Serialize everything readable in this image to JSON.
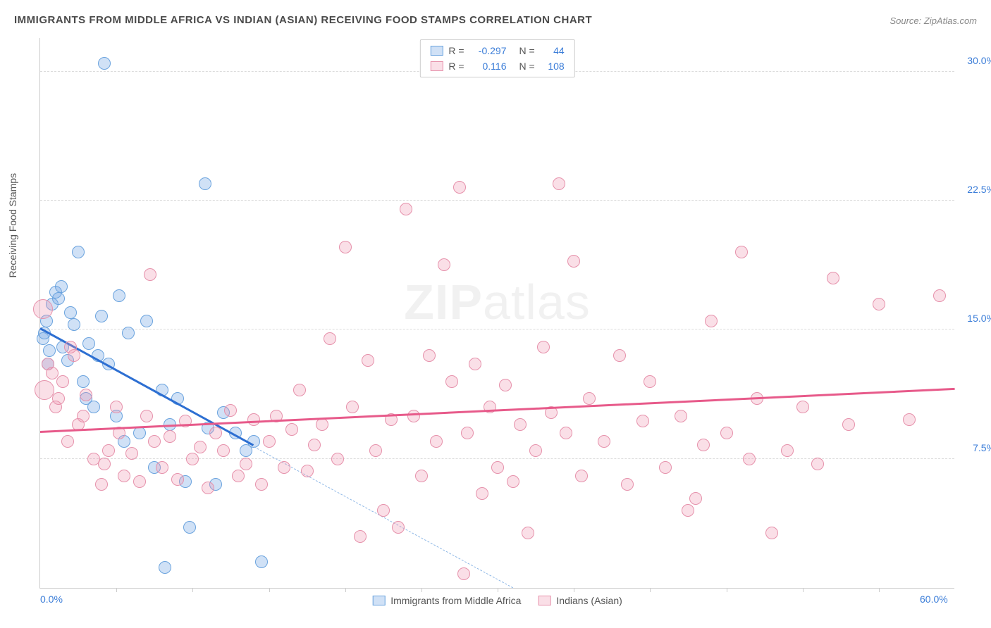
{
  "title": "IMMIGRANTS FROM MIDDLE AFRICA VS INDIAN (ASIAN) RECEIVING FOOD STAMPS CORRELATION CHART",
  "source": "Source: ZipAtlas.com",
  "ylabel": "Receiving Food Stamps",
  "watermark_bold": "ZIP",
  "watermark_rest": "atlas",
  "chart": {
    "type": "scatter",
    "xlim": [
      0,
      60
    ],
    "ylim": [
      0,
      32
    ],
    "xticks_minor": [
      5,
      10,
      15,
      20,
      25,
      30,
      35,
      40,
      45,
      50,
      55
    ],
    "xtick_labels": [
      {
        "x": 0,
        "label": "0.0%"
      },
      {
        "x": 60,
        "label": "60.0%"
      }
    ],
    "yticks": [
      {
        "y": 7.5,
        "label": "7.5%"
      },
      {
        "y": 15.0,
        "label": "15.0%"
      },
      {
        "y": 22.5,
        "label": "22.5%"
      },
      {
        "y": 30.0,
        "label": "30.0%"
      }
    ],
    "background_color": "#ffffff",
    "grid_color": "#dcdcdc",
    "series": [
      {
        "key": "middle_africa",
        "label": "Immigrants from Middle Africa",
        "fill": "rgba(120,170,230,0.35)",
        "stroke": "#6aa3de",
        "marker_radius": 9,
        "R": "-0.297",
        "N": "44",
        "trend": {
          "x1": 0,
          "y1": 15.0,
          "x2": 14,
          "y2": 8.2,
          "color": "#2d6fd2",
          "width": 3,
          "dash": false
        },
        "extrap": {
          "x1": 14,
          "y1": 8.2,
          "x2": 31,
          "y2": 0.0,
          "color": "#8fb8e6",
          "width": 1,
          "dash": true
        },
        "points": [
          {
            "x": 0.2,
            "y": 14.5
          },
          {
            "x": 0.3,
            "y": 14.8
          },
          {
            "x": 0.4,
            "y": 15.5
          },
          {
            "x": 0.5,
            "y": 13.0
          },
          {
            "x": 0.6,
            "y": 13.8
          },
          {
            "x": 0.8,
            "y": 16.5
          },
          {
            "x": 1.0,
            "y": 17.2
          },
          {
            "x": 1.2,
            "y": 16.8
          },
          {
            "x": 1.4,
            "y": 17.5
          },
          {
            "x": 1.5,
            "y": 14.0
          },
          {
            "x": 1.8,
            "y": 13.2
          },
          {
            "x": 2.0,
            "y": 16.0
          },
          {
            "x": 2.2,
            "y": 15.3
          },
          {
            "x": 2.5,
            "y": 19.5
          },
          {
            "x": 2.8,
            "y": 12.0
          },
          {
            "x": 3.0,
            "y": 11.0
          },
          {
            "x": 3.2,
            "y": 14.2
          },
          {
            "x": 3.5,
            "y": 10.5
          },
          {
            "x": 3.8,
            "y": 13.5
          },
          {
            "x": 4.0,
            "y": 15.8
          },
          {
            "x": 4.2,
            "y": 30.5
          },
          {
            "x": 4.5,
            "y": 13.0
          },
          {
            "x": 5.0,
            "y": 10.0
          },
          {
            "x": 5.2,
            "y": 17.0
          },
          {
            "x": 5.5,
            "y": 8.5
          },
          {
            "x": 5.8,
            "y": 14.8
          },
          {
            "x": 6.5,
            "y": 9.0
          },
          {
            "x": 7.0,
            "y": 15.5
          },
          {
            "x": 7.5,
            "y": 7.0
          },
          {
            "x": 8.0,
            "y": 11.5
          },
          {
            "x": 8.2,
            "y": 1.2
          },
          {
            "x": 8.5,
            "y": 9.5
          },
          {
            "x": 9.0,
            "y": 11.0
          },
          {
            "x": 9.5,
            "y": 6.2
          },
          {
            "x": 9.8,
            "y": 3.5
          },
          {
            "x": 10.8,
            "y": 23.5
          },
          {
            "x": 11.0,
            "y": 9.3
          },
          {
            "x": 11.5,
            "y": 6.0
          },
          {
            "x": 12.0,
            "y": 10.2
          },
          {
            "x": 12.8,
            "y": 9.0
          },
          {
            "x": 13.5,
            "y": 8.0
          },
          {
            "x": 14.0,
            "y": 8.5
          },
          {
            "x": 14.5,
            "y": 1.5
          }
        ]
      },
      {
        "key": "indians",
        "label": "Indians (Asian)",
        "fill": "rgba(240,150,175,0.30)",
        "stroke": "#e691ab",
        "marker_radius": 9,
        "R": "0.116",
        "N": "108",
        "trend": {
          "x1": 0,
          "y1": 9.0,
          "x2": 60,
          "y2": 11.5,
          "color": "#e75a8a",
          "width": 3,
          "dash": false
        },
        "points": [
          {
            "x": 0.2,
            "y": 16.2,
            "r": 14
          },
          {
            "x": 0.3,
            "y": 11.5,
            "r": 14
          },
          {
            "x": 0.5,
            "y": 13.0
          },
          {
            "x": 0.8,
            "y": 12.5
          },
          {
            "x": 1.0,
            "y": 10.5
          },
          {
            "x": 1.2,
            "y": 11.0
          },
          {
            "x": 1.5,
            "y": 12.0
          },
          {
            "x": 1.8,
            "y": 8.5
          },
          {
            "x": 2.0,
            "y": 14.0
          },
          {
            "x": 2.2,
            "y": 13.5
          },
          {
            "x": 2.5,
            "y": 9.5
          },
          {
            "x": 2.8,
            "y": 10.0
          },
          {
            "x": 3.0,
            "y": 11.2
          },
          {
            "x": 3.5,
            "y": 7.5
          },
          {
            "x": 4.0,
            "y": 6.0
          },
          {
            "x": 4.2,
            "y": 7.2
          },
          {
            "x": 4.5,
            "y": 8.0
          },
          {
            "x": 5.0,
            "y": 10.5
          },
          {
            "x": 5.2,
            "y": 9.0
          },
          {
            "x": 5.5,
            "y": 6.5
          },
          {
            "x": 6.0,
            "y": 7.8
          },
          {
            "x": 6.5,
            "y": 6.2
          },
          {
            "x": 7.0,
            "y": 10.0
          },
          {
            "x": 7.2,
            "y": 18.2
          },
          {
            "x": 7.5,
            "y": 8.5
          },
          {
            "x": 8.0,
            "y": 7.0
          },
          {
            "x": 8.5,
            "y": 8.8
          },
          {
            "x": 9.0,
            "y": 6.3
          },
          {
            "x": 9.5,
            "y": 9.7
          },
          {
            "x": 10.0,
            "y": 7.5
          },
          {
            "x": 10.5,
            "y": 8.2
          },
          {
            "x": 11.0,
            "y": 5.8
          },
          {
            "x": 11.5,
            "y": 9.0
          },
          {
            "x": 12.0,
            "y": 8.0
          },
          {
            "x": 12.5,
            "y": 10.3
          },
          {
            "x": 13.0,
            "y": 6.5
          },
          {
            "x": 13.5,
            "y": 7.2
          },
          {
            "x": 14.0,
            "y": 9.8
          },
          {
            "x": 14.5,
            "y": 6.0
          },
          {
            "x": 15.0,
            "y": 8.5
          },
          {
            "x": 15.5,
            "y": 10.0
          },
          {
            "x": 16.0,
            "y": 7.0
          },
          {
            "x": 16.5,
            "y": 9.2
          },
          {
            "x": 17.0,
            "y": 11.5
          },
          {
            "x": 17.5,
            "y": 6.8
          },
          {
            "x": 18.0,
            "y": 8.3
          },
          {
            "x": 18.5,
            "y": 9.5
          },
          {
            "x": 19.0,
            "y": 14.5
          },
          {
            "x": 19.5,
            "y": 7.5
          },
          {
            "x": 20.0,
            "y": 19.8
          },
          {
            "x": 20.5,
            "y": 10.5
          },
          {
            "x": 21.0,
            "y": 3.0
          },
          {
            "x": 21.5,
            "y": 13.2
          },
          {
            "x": 22.0,
            "y": 8.0
          },
          {
            "x": 22.5,
            "y": 4.5
          },
          {
            "x": 23.0,
            "y": 9.8
          },
          {
            "x": 23.5,
            "y": 3.5
          },
          {
            "x": 24.0,
            "y": 22.0
          },
          {
            "x": 24.5,
            "y": 10.0
          },
          {
            "x": 25.0,
            "y": 6.5
          },
          {
            "x": 25.5,
            "y": 13.5
          },
          {
            "x": 26.0,
            "y": 8.5
          },
          {
            "x": 26.5,
            "y": 18.8
          },
          {
            "x": 27.0,
            "y": 12.0
          },
          {
            "x": 27.5,
            "y": 23.3
          },
          {
            "x": 28.0,
            "y": 9.0
          },
          {
            "x": 27.8,
            "y": 0.8
          },
          {
            "x": 28.5,
            "y": 13.0
          },
          {
            "x": 29.0,
            "y": 5.5
          },
          {
            "x": 29.5,
            "y": 10.5
          },
          {
            "x": 30.0,
            "y": 7.0
          },
          {
            "x": 30.5,
            "y": 11.8
          },
          {
            "x": 31.0,
            "y": 6.2
          },
          {
            "x": 31.5,
            "y": 9.5
          },
          {
            "x": 32.0,
            "y": 3.2
          },
          {
            "x": 32.5,
            "y": 8.0
          },
          {
            "x": 33.0,
            "y": 14.0
          },
          {
            "x": 33.5,
            "y": 10.2
          },
          {
            "x": 34.0,
            "y": 23.5
          },
          {
            "x": 34.5,
            "y": 9.0
          },
          {
            "x": 35.0,
            "y": 19.0
          },
          {
            "x": 35.5,
            "y": 6.5
          },
          {
            "x": 36.0,
            "y": 11.0
          },
          {
            "x": 37.0,
            "y": 8.5
          },
          {
            "x": 38.0,
            "y": 13.5
          },
          {
            "x": 38.5,
            "y": 6.0
          },
          {
            "x": 39.5,
            "y": 9.7
          },
          {
            "x": 40.0,
            "y": 12.0
          },
          {
            "x": 41.0,
            "y": 7.0
          },
          {
            "x": 42.0,
            "y": 10.0
          },
          {
            "x": 42.5,
            "y": 4.5
          },
          {
            "x": 43.0,
            "y": 5.2
          },
          {
            "x": 43.5,
            "y": 8.3
          },
          {
            "x": 44.0,
            "y": 15.5
          },
          {
            "x": 45.0,
            "y": 9.0
          },
          {
            "x": 46.0,
            "y": 19.5
          },
          {
            "x": 46.5,
            "y": 7.5
          },
          {
            "x": 47.0,
            "y": 11.0
          },
          {
            "x": 48.0,
            "y": 3.2
          },
          {
            "x": 49.0,
            "y": 8.0
          },
          {
            "x": 50.0,
            "y": 10.5
          },
          {
            "x": 51.0,
            "y": 7.2
          },
          {
            "x": 52.0,
            "y": 18.0
          },
          {
            "x": 53.0,
            "y": 9.5
          },
          {
            "x": 55.0,
            "y": 16.5
          },
          {
            "x": 57.0,
            "y": 9.8
          },
          {
            "x": 59.0,
            "y": 17.0
          }
        ]
      }
    ]
  },
  "legend_top": {
    "R_label": "R =",
    "N_label": "N =",
    "value_color": "#3b7dd8"
  }
}
